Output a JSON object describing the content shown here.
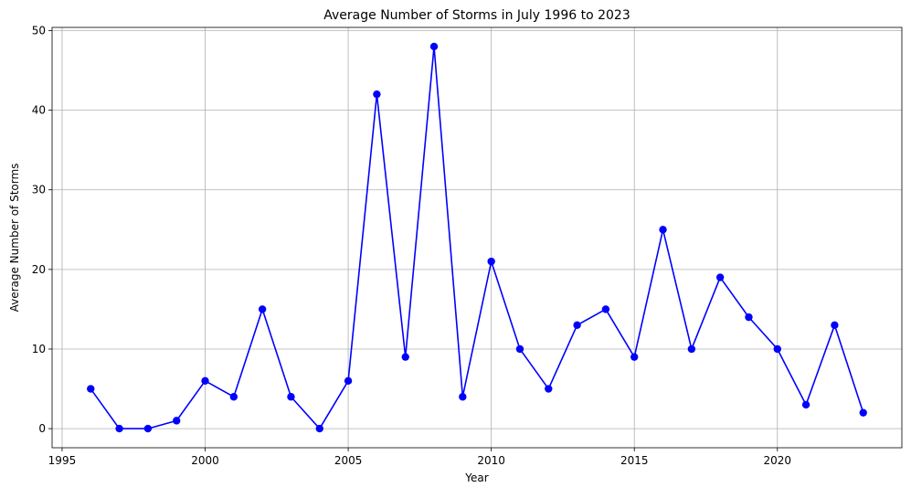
{
  "chart_data": {
    "type": "line",
    "title": "Average Number of Storms in July 1996 to 2023",
    "xlabel": "Year",
    "ylabel": "Average Number of Storms",
    "x": [
      1996,
      1997,
      1998,
      1999,
      2000,
      2001,
      2002,
      2003,
      2004,
      2005,
      2006,
      2007,
      2008,
      2009,
      2010,
      2011,
      2012,
      2013,
      2014,
      2015,
      2016,
      2017,
      2018,
      2019,
      2020,
      2021,
      2022,
      2023
    ],
    "series": [
      {
        "values": [
          5,
          0,
          0,
          1,
          6,
          4,
          15,
          4,
          0,
          6,
          42,
          9,
          48,
          4,
          21,
          10,
          5,
          13,
          15,
          9,
          25,
          10,
          19,
          14,
          10,
          3,
          13,
          2
        ],
        "color": "#0000ff",
        "marker": "circle"
      }
    ],
    "xlim": [
      1994.65,
      2024.35
    ],
    "ylim": [
      -2.4,
      50.4
    ],
    "xticks": [
      "1995",
      "2000",
      "2005",
      "2010",
      "2015",
      "2020"
    ],
    "yticks": [
      "0",
      "10",
      "20",
      "30",
      "40",
      "50"
    ],
    "grid": true,
    "legend": "none"
  }
}
